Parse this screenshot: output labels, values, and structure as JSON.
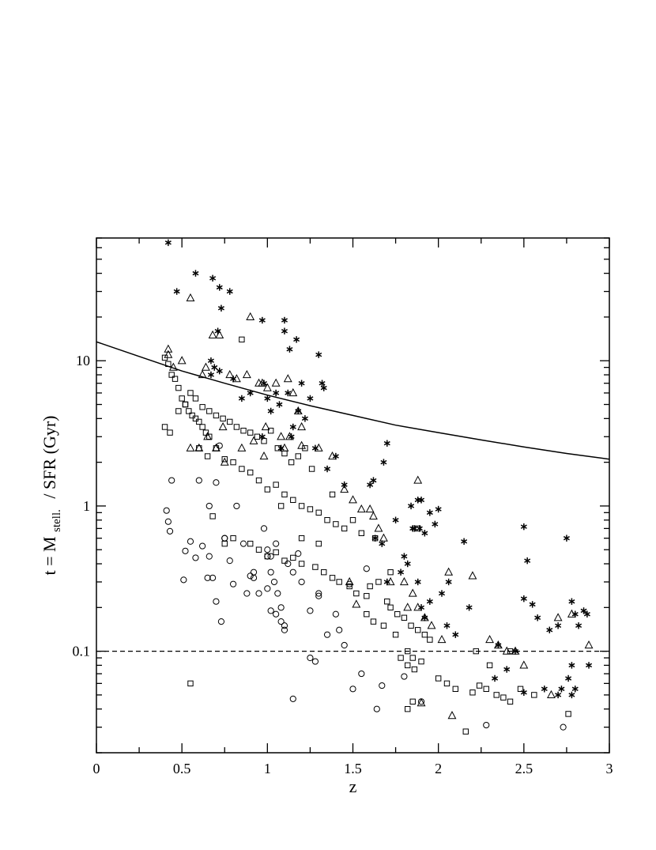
{
  "chart_data": {
    "type": "scatter",
    "xlabel": "z",
    "ylabel": {
      "main": "t = M",
      "subscript": "stell.",
      "tail": "/ SFR  (Gyr)"
    },
    "xlim": [
      0,
      3
    ],
    "ylim": [
      0.02,
      70
    ],
    "yscale": "log",
    "grid": false,
    "xticks": {
      "major": [
        0,
        0.5,
        1,
        1.5,
        2,
        2.5,
        3
      ],
      "labels": [
        "0",
        "0.5",
        "1",
        "1.5",
        "2",
        "2.5",
        "3"
      ],
      "minor_step": 0.25
    },
    "yticks": {
      "major": [
        0.1,
        1,
        10
      ],
      "labels": [
        "0.1",
        "1",
        "10"
      ]
    },
    "reference_lines": [
      {
        "style": "dashed",
        "y": 0.1
      }
    ],
    "curves": [
      {
        "style": "solid",
        "x": [
          0,
          0.25,
          0.5,
          0.75,
          1,
          1.25,
          1.5,
          1.75,
          2,
          2.25,
          2.5,
          2.75,
          3
        ],
        "y": [
          13.5,
          10.7,
          8.5,
          7.0,
          5.8,
          4.9,
          4.2,
          3.6,
          3.2,
          2.85,
          2.55,
          2.3,
          2.1
        ]
      }
    ],
    "series": [
      {
        "marker": "asterisk",
        "x": [
          0.42,
          0.47,
          0.58,
          0.68,
          0.72,
          0.73,
          0.78,
          0.97,
          1.1,
          1.1,
          1.17,
          1.13,
          0.67,
          0.69,
          0.72,
          0.71,
          0.67,
          0.8,
          0.98,
          1.05,
          1.12,
          1.2,
          1.25,
          1.3,
          1.32,
          1.33,
          0.85,
          0.9,
          1.0,
          1.02,
          1.07,
          1.15,
          1.18,
          1.22,
          0.97,
          1.08,
          1.14,
          1.28,
          1.35,
          1.4,
          1.45,
          1.62,
          1.6,
          1.68,
          1.7,
          1.63,
          1.75,
          1.82,
          1.84,
          1.86,
          1.88,
          1.9,
          1.92,
          1.95,
          1.98,
          2.0,
          1.85,
          1.8,
          1.89,
          1.7,
          1.67,
          1.78,
          1.88,
          1.9,
          2.02,
          2.06,
          2.15,
          2.18,
          2.05,
          1.95,
          1.92,
          2.1,
          2.5,
          2.52,
          2.55,
          2.5,
          2.58,
          2.65,
          2.7,
          2.75,
          2.78,
          2.8,
          2.85,
          2.87,
          2.82,
          2.72,
          2.7,
          2.4,
          2.45,
          2.33,
          2.35,
          2.5,
          2.76,
          2.78,
          2.8,
          2.78,
          2.88,
          2.62
        ],
        "y": [
          65,
          30,
          40,
          37,
          32,
          23,
          30,
          19,
          19,
          16,
          14,
          12,
          10,
          9,
          8.5,
          16,
          8,
          7.5,
          7,
          6,
          6,
          7,
          5.5,
          11,
          7,
          6.5,
          5.5,
          6,
          5.5,
          4.5,
          5,
          3.5,
          4.5,
          4,
          3,
          2.5,
          3,
          2.5,
          1.8,
          2.2,
          1.4,
          1.5,
          1.4,
          2,
          2.7,
          0.6,
          0.8,
          0.4,
          1.0,
          0.7,
          1.1,
          1.1,
          0.65,
          0.9,
          0.75,
          0.95,
          0.7,
          0.45,
          0.7,
          0.3,
          0.55,
          0.35,
          0.3,
          0.2,
          0.25,
          0.3,
          0.57,
          0.2,
          0.15,
          0.22,
          0.17,
          0.13,
          0.72,
          0.42,
          0.21,
          0.23,
          0.17,
          0.14,
          0.15,
          0.6,
          0.22,
          0.18,
          0.19,
          0.18,
          0.15,
          0.055,
          0.05,
          0.075,
          0.1,
          0.065,
          0.11,
          0.052,
          0.065,
          0.08,
          0.055,
          0.05,
          0.08,
          0.055
        ]
      },
      {
        "marker": "triangle",
        "x": [
          0.42,
          0.42,
          0.55,
          0.45,
          0.5,
          0.62,
          0.64,
          0.68,
          0.72,
          0.78,
          0.82,
          0.88,
          0.9,
          0.95,
          1.0,
          0.97,
          1.05,
          1.12,
          1.15,
          1.18,
          1.2,
          1.08,
          0.99,
          0.74,
          0.65,
          0.6,
          0.55,
          0.7,
          0.75,
          0.85,
          0.92,
          0.98,
          1.1,
          1.13,
          1.2,
          1.3,
          1.38,
          1.45,
          1.5,
          1.55,
          1.62,
          1.65,
          1.68,
          1.72,
          1.8,
          1.82,
          1.85,
          1.88,
          1.92,
          1.96,
          2.02,
          2.06,
          2.2,
          2.3,
          2.35,
          2.4,
          2.45,
          2.5,
          2.66,
          2.7,
          2.78,
          2.88,
          1.88,
          1.9,
          2.08,
          1.52,
          1.48,
          1.6
        ],
        "y": [
          12,
          11,
          27,
          9,
          10,
          8,
          9,
          15,
          15,
          8,
          7.5,
          8,
          20,
          7,
          6.5,
          7,
          7,
          7.5,
          6,
          4.5,
          3.5,
          3,
          3.5,
          3.5,
          3,
          2.5,
          2.5,
          2.5,
          2,
          2.5,
          2.8,
          2.2,
          2.5,
          3,
          2.6,
          2.5,
          2.2,
          1.3,
          1.1,
          0.95,
          0.85,
          0.7,
          0.6,
          0.3,
          0.3,
          0.2,
          0.25,
          0.2,
          0.17,
          0.15,
          0.12,
          0.35,
          0.33,
          0.12,
          0.11,
          0.1,
          0.1,
          0.08,
          0.05,
          0.17,
          0.18,
          0.11,
          1.5,
          0.044,
          0.036,
          0.21,
          0.3,
          0.95
        ]
      },
      {
        "marker": "square",
        "x": [
          0.4,
          0.42,
          0.44,
          0.46,
          0.48,
          0.5,
          0.52,
          0.54,
          0.56,
          0.58,
          0.6,
          0.62,
          0.64,
          0.66,
          0.4,
          0.43,
          0.48,
          0.52,
          0.55,
          0.58,
          0.62,
          0.66,
          0.7,
          0.74,
          0.78,
          0.82,
          0.86,
          0.9,
          0.94,
          0.98,
          1.02,
          1.06,
          1.1,
          1.14,
          1.18,
          1.22,
          1.26,
          0.6,
          0.65,
          0.7,
          0.75,
          0.8,
          0.85,
          0.9,
          0.95,
          1.0,
          1.05,
          1.1,
          1.15,
          1.2,
          1.25,
          1.3,
          1.35,
          1.4,
          1.45,
          0.75,
          0.8,
          0.9,
          0.95,
          1.0,
          1.05,
          1.1,
          1.15,
          1.2,
          1.28,
          1.33,
          1.38,
          1.42,
          1.48,
          1.52,
          1.58,
          1.6,
          1.65,
          1.7,
          1.72,
          1.76,
          1.8,
          1.84,
          1.88,
          1.92,
          1.95,
          1.58,
          1.62,
          1.68,
          1.75,
          1.82,
          1.85,
          1.9,
          1.78,
          1.82,
          1.86,
          2.0,
          2.05,
          2.1,
          2.2,
          2.24,
          2.28,
          2.34,
          2.38,
          2.42,
          2.48,
          2.56,
          2.76,
          2.3,
          2.42,
          1.85,
          1.82,
          2.16,
          2.22,
          0.55,
          0.68,
          0.85,
          1.08,
          1.2,
          1.3,
          1.38,
          1.5,
          1.55,
          1.63,
          1.72,
          1.88
        ],
        "y": [
          10.5,
          9.5,
          8,
          7.5,
          6.5,
          5.5,
          5,
          4.5,
          4.2,
          4,
          3.8,
          3.5,
          3.2,
          3,
          3.5,
          3.2,
          4.5,
          5,
          6,
          5.5,
          4.8,
          4.5,
          4.2,
          4,
          3.8,
          3.5,
          3.3,
          3.2,
          3,
          2.8,
          3.3,
          2.5,
          2.3,
          2,
          2.2,
          2.5,
          1.8,
          2.5,
          2.2,
          2.5,
          2.1,
          2,
          1.8,
          1.7,
          1.5,
          1.3,
          1.4,
          1.2,
          1.1,
          1.0,
          0.95,
          0.9,
          0.8,
          0.75,
          0.7,
          0.55,
          0.6,
          0.55,
          0.5,
          0.45,
          0.48,
          0.42,
          0.44,
          0.4,
          0.38,
          0.35,
          0.32,
          0.3,
          0.28,
          0.25,
          0.24,
          0.28,
          0.3,
          0.22,
          0.2,
          0.18,
          0.17,
          0.15,
          0.14,
          0.13,
          0.12,
          0.18,
          0.16,
          0.15,
          0.13,
          0.1,
          0.09,
          0.085,
          0.09,
          0.08,
          0.075,
          0.065,
          0.06,
          0.055,
          0.052,
          0.058,
          0.055,
          0.05,
          0.048,
          0.045,
          0.055,
          0.05,
          0.037,
          0.08,
          0.1,
          0.045,
          0.04,
          0.028,
          0.1,
          0.06,
          0.85,
          14,
          1.0,
          0.6,
          0.55,
          1.2,
          0.8,
          0.65,
          0.6,
          0.35,
          0.7
        ]
      },
      {
        "marker": "circle",
        "x": [
          0.41,
          0.42,
          0.43,
          0.44,
          0.52,
          0.51,
          0.55,
          0.58,
          0.6,
          0.62,
          0.66,
          0.68,
          0.7,
          0.73,
          0.75,
          0.78,
          0.8,
          0.82,
          0.86,
          0.9,
          0.92,
          0.95,
          0.98,
          1.0,
          1.02,
          1.04,
          1.06,
          1.08,
          1.1,
          1.0,
          1.02,
          1.05,
          1.08,
          1.1,
          1.12,
          1.15,
          1.18,
          1.2,
          1.25,
          1.3,
          1.35,
          1.4,
          1.45,
          1.0,
          1.02,
          1.05,
          0.92,
          0.88,
          0.7,
          0.75,
          0.65,
          0.66,
          1.15,
          1.25,
          1.28,
          1.3,
          1.42,
          1.5,
          1.55,
          1.64,
          1.67,
          1.8,
          1.9,
          2.28,
          2.73,
          1.58,
          0.72,
          1.48
        ],
        "y": [
          0.93,
          0.78,
          0.67,
          1.5,
          0.49,
          0.31,
          0.57,
          0.44,
          1.5,
          0.53,
          0.45,
          0.32,
          0.22,
          0.16,
          0.6,
          0.42,
          0.29,
          1.0,
          0.55,
          0.33,
          0.32,
          0.25,
          0.7,
          0.45,
          0.35,
          0.3,
          0.25,
          0.2,
          0.15,
          0.27,
          0.19,
          0.18,
          0.16,
          0.14,
          0.4,
          0.35,
          0.47,
          0.3,
          0.19,
          0.24,
          0.13,
          0.18,
          0.11,
          0.5,
          0.45,
          0.55,
          0.35,
          0.25,
          1.45,
          0.6,
          0.32,
          1.0,
          0.047,
          0.09,
          0.085,
          0.25,
          0.14,
          0.055,
          0.07,
          0.04,
          0.058,
          0.067,
          0.045,
          0.031,
          0.03,
          0.37,
          2.6,
          0.29
        ]
      }
    ]
  }
}
